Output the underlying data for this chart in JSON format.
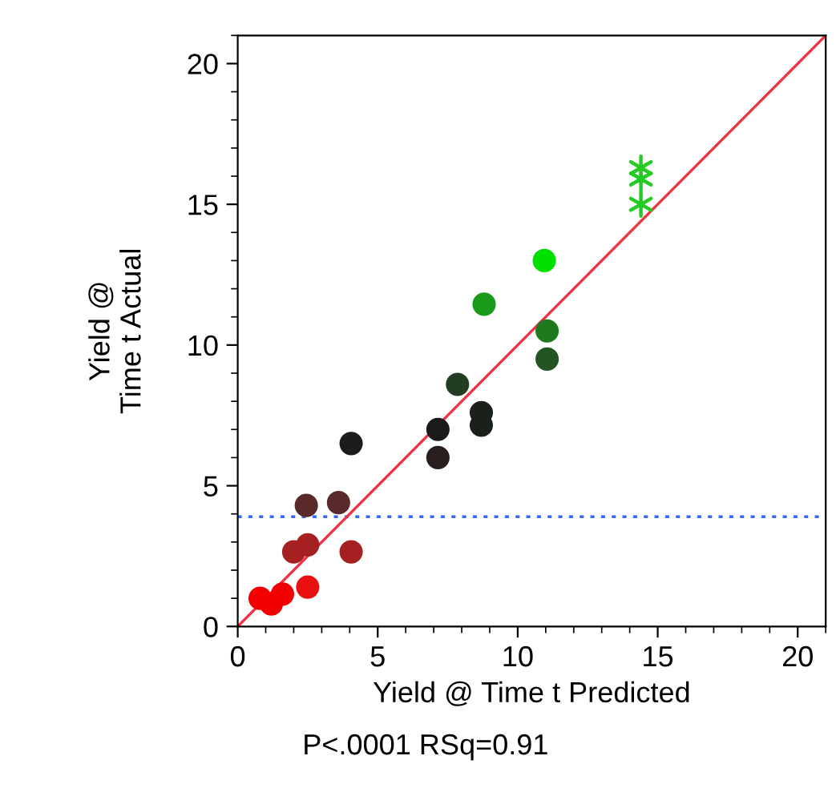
{
  "chart_data": {
    "type": "scatter",
    "xlabel": "Yield @ Time t Predicted",
    "ylabel": "Yield @\nTime t Actual",
    "annotations": [
      "P<.0001 RSq=0.91"
    ],
    "xlim": [
      0,
      21
    ],
    "ylim": [
      0,
      21
    ],
    "xticks": [
      0,
      5,
      10,
      15,
      20
    ],
    "yticks": [
      0,
      5,
      10,
      15,
      20
    ],
    "grid": false,
    "legend": false,
    "ref_lines": [
      {
        "axis": "y",
        "value": 3.9,
        "color": "#3366ff",
        "line_style": "dotted"
      }
    ],
    "series": [
      {
        "marker": "circle",
        "x": [
          0.8,
          1.2,
          1.6,
          2.5,
          2.0,
          2.5,
          4.05,
          2.45,
          3.6,
          4.05,
          7.15,
          7.15,
          8.7,
          8.7,
          7.85,
          8.8,
          10.95,
          11.05,
          11.05
        ],
        "values": [
          1.0,
          0.8,
          1.15,
          1.4,
          2.65,
          2.9,
          2.65,
          4.3,
          4.4,
          6.5,
          6.0,
          7.0,
          7.6,
          7.15,
          8.6,
          11.45,
          13.0,
          10.5,
          9.5
        ],
        "colors": [
          "#f20000",
          "#f20000",
          "#f20000",
          "#e81010",
          "#a52020",
          "#a52020",
          "#a52020",
          "#5a2a2a",
          "#5a2a2a",
          "#1c1c1c",
          "#2a1f1f",
          "#1a1a1a",
          "#1a201a",
          "#1a201a",
          "#223d22",
          "#1a9a1a",
          "#00e000",
          "#1f7a1f",
          "#225522"
        ]
      },
      {
        "marker": "cross",
        "x": [
          14.4,
          14.4,
          14.4
        ],
        "values": [
          16.3,
          15.9,
          15.0
        ],
        "color": "#22cc22"
      },
      {
        "type": "line",
        "x": [
          0,
          21
        ],
        "values": [
          0,
          21
        ],
        "color": "#ee3344",
        "line_style": "solid",
        "marker": "none"
      }
    ]
  }
}
